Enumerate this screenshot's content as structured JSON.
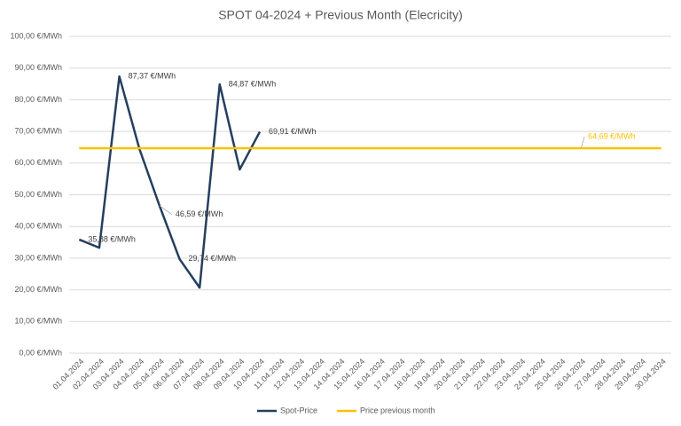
{
  "chart_data": {
    "type": "line",
    "title": "SPOT 04-2024 + Previous Month (Elecricity)",
    "categories": [
      "01.04.2024",
      "02.04.2024",
      "03.04.2024",
      "04.04.2024",
      "05.04.2024",
      "06.04.2024",
      "07.04.2024",
      "08.04.2024",
      "09.04.2024",
      "10.04.2024",
      "11.04.2024",
      "12.04.2024",
      "13.04.2024",
      "14.04.2024",
      "15.04.2024",
      "16.04.2024",
      "17.04.2024",
      "18.04.2024",
      "19.04.2024",
      "20.04.2024",
      "21.04.2024",
      "22.04.2024",
      "23.04.2024",
      "24.04.2024",
      "25.04.2024",
      "26.04.2024",
      "27.04.2024",
      "28.04.2024",
      "29.04.2024",
      "30.04.2024"
    ],
    "series": [
      {
        "name": "Spot-Price",
        "color": "#243f5e",
        "values": [
          35.88,
          33.3,
          87.37,
          64.5,
          46.59,
          29.74,
          20.7,
          84.87,
          58.0,
          69.91,
          null,
          null,
          null,
          null,
          null,
          null,
          null,
          null,
          null,
          null,
          null,
          null,
          null,
          null,
          null,
          null,
          null,
          null,
          null,
          null
        ],
        "value_labels": [
          "35,88 €/MWh",
          null,
          "87,37 €/MWh",
          null,
          "46,59 €/MWh",
          "29,74 €/MWh",
          null,
          "84,87 €/MWh",
          null,
          "69,91 €/MWh",
          null,
          null,
          null,
          null,
          null,
          null,
          null,
          null,
          null,
          null,
          null,
          null,
          null,
          null,
          null,
          null,
          null,
          null,
          null,
          null
        ]
      },
      {
        "name": "Price previous month",
        "color": "#ffc000",
        "values": [
          64.69,
          64.69,
          64.69,
          64.69,
          64.69,
          64.69,
          64.69,
          64.69,
          64.69,
          64.69,
          64.69,
          64.69,
          64.69,
          64.69,
          64.69,
          64.69,
          64.69,
          64.69,
          64.69,
          64.69,
          64.69,
          64.69,
          64.69,
          64.69,
          64.69,
          64.69,
          64.69,
          64.69,
          64.69,
          64.69
        ],
        "value_labels": [
          null,
          null,
          null,
          null,
          null,
          null,
          null,
          null,
          null,
          null,
          null,
          null,
          null,
          null,
          null,
          null,
          null,
          null,
          null,
          null,
          null,
          null,
          null,
          null,
          null,
          "64,69 €/MWh",
          null,
          null,
          null,
          null
        ]
      }
    ],
    "ylim": [
      0,
      100
    ],
    "yticks": [
      {
        "value": 0,
        "label": "0,00 €/MWh"
      },
      {
        "value": 10,
        "label": "10,00 €/MWh"
      },
      {
        "value": 20,
        "label": "20,00 €/MWh"
      },
      {
        "value": 30,
        "label": "30,00 €/MWh"
      },
      {
        "value": 40,
        "label": "40,00 €/MWh"
      },
      {
        "value": 50,
        "label": "50,00 €/MWh"
      },
      {
        "value": 60,
        "label": "60,00 €/MWh"
      },
      {
        "value": 70,
        "label": "70,00 €/MWh"
      },
      {
        "value": 80,
        "label": "80,00 €/MWh"
      },
      {
        "value": 90,
        "label": "90,00 €/MWh"
      },
      {
        "value": 100,
        "label": "100,00 €/MWh"
      }
    ],
    "grid": true,
    "legend": "bottom"
  }
}
